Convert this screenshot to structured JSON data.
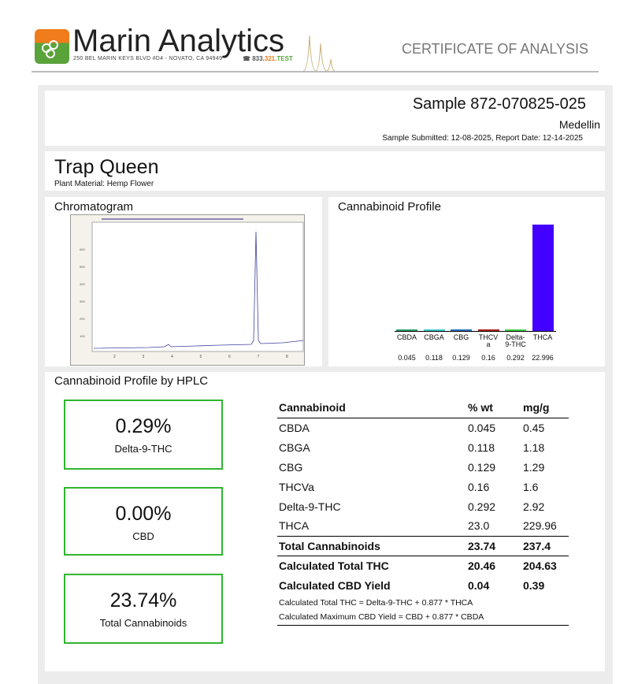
{
  "header": {
    "brand": "Marin Analytics",
    "address": "250 BEL MARIN KEYS BLVD #D4 - NOVATO, CA 94949",
    "phone_a": "833.",
    "phone_b": "321",
    "phone_c": ".TEST",
    "doc_type": "CERTIFICATE OF ANALYSIS"
  },
  "sample": {
    "id": "Sample 872-070825-025",
    "client": "Medellin",
    "dates": "Sample Submitted: 12-08-2025, Report Date: 12-14-2025"
  },
  "product": {
    "name": "Trap Queen",
    "material": "Plant Material: Hemp Flower"
  },
  "chromatogram": {
    "title": "Chromatogram",
    "y_ticks": [
      "100",
      "200",
      "300",
      "400",
      "500",
      "600"
    ],
    "x_ticks": [
      "2",
      "3",
      "4",
      "5",
      "6",
      "7",
      "8"
    ]
  },
  "profile": {
    "title": "Cannabinoid Profile"
  },
  "chart_data": {
    "type": "bar",
    "categories": [
      "CBDA",
      "CBGA",
      "CBG",
      "THCV a",
      "Delta- 9-THC",
      "THCA"
    ],
    "labels": [
      "CBDA",
      "CBGA",
      "CBG",
      "THCV\na",
      "Delta-\n9-THC",
      "THCA"
    ],
    "values": [
      0.045,
      0.118,
      0.129,
      0.16,
      0.292,
      22.996
    ],
    "value_labels": [
      "0.045",
      "0.118",
      "0.129",
      "0.16",
      "0.292",
      "22.996"
    ],
    "colors": [
      "#2e9e6e",
      "#3cc8c8",
      "#2a6fc0",
      "#b02020",
      "#44d044",
      "#4400ff"
    ]
  },
  "hplc": {
    "title": "Cannabinoid Profile by HPLC",
    "kpis": [
      {
        "value": "0.29%",
        "label": "Delta-9-THC"
      },
      {
        "value": "0.00%",
        "label": "CBD"
      },
      {
        "value": "23.74%",
        "label": "Total Cannabinoids"
      }
    ],
    "columns": [
      "Cannabinoid",
      "% wt",
      "mg/g"
    ],
    "rows": [
      [
        "CBDA",
        "0.045",
        "0.45"
      ],
      [
        "CBGA",
        "0.118",
        "1.18"
      ],
      [
        "CBG",
        "0.129",
        "1.29"
      ],
      [
        "THCVa",
        "0.16",
        "1.6"
      ],
      [
        "Delta-9-THC",
        "0.292",
        "2.92"
      ],
      [
        "THCA",
        "23.0",
        "229.96"
      ]
    ],
    "totals": [
      [
        "Total Cannabinoids",
        "23.74",
        "237.4"
      ],
      [
        "Calculated Total THC",
        "20.46",
        "204.63"
      ],
      [
        "Calculated CBD Yield",
        "0.04",
        "0.39"
      ]
    ],
    "notes": [
      "Calculated Total THC = Delta-9-THC + 0.877 * THCA",
      "Calculated Maximum CBD Yield = CBD + 0.877 * CBDA"
    ]
  }
}
